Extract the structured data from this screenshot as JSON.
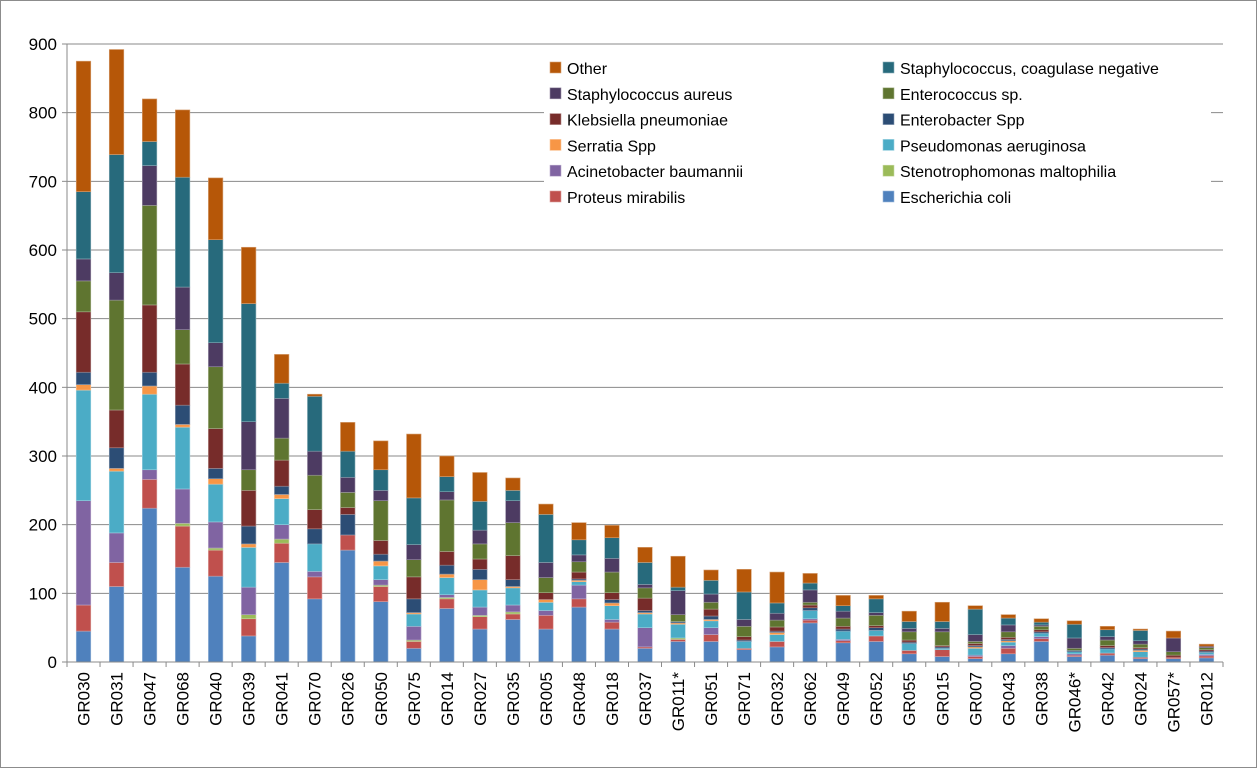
{
  "chart_data": {
    "type": "bar",
    "stacked": true,
    "title": "",
    "xlabel": "",
    "ylabel": "",
    "ylim": [
      0,
      900
    ],
    "yticks": [
      0,
      100,
      200,
      300,
      400,
      500,
      600,
      700,
      800,
      900
    ],
    "grid": true,
    "legend_position": "top-right",
    "categories": [
      "GR030",
      "GR031",
      "GR047",
      "GR068",
      "GR040",
      "GR039",
      "GR041",
      "GR070",
      "GR026",
      "GR050",
      "GR075",
      "GR014",
      "GR027",
      "GR035",
      "GR005",
      "GR048",
      "GR018",
      "GR037",
      "GR011*",
      "GR051",
      "GR071",
      "GR032",
      "GR062",
      "GR049",
      "GR052",
      "GR055",
      "GR015",
      "GR007",
      "GR043",
      "GR038",
      "GR046*",
      "GR042",
      "GR024",
      "GR057*",
      "GR012"
    ],
    "series": [
      {
        "name": "Escherichia coli",
        "color": "#4F81BD",
        "values": [
          45,
          110,
          224,
          138,
          125,
          38,
          145,
          92,
          163,
          88,
          20,
          78,
          48,
          62,
          48,
          80,
          48,
          20,
          30,
          30,
          18,
          22,
          57,
          28,
          30,
          12,
          8,
          5,
          12,
          30,
          8,
          10,
          5,
          5,
          6
        ]
      },
      {
        "name": "Proteus mirabilis",
        "color": "#C0504D",
        "values": [
          38,
          35,
          42,
          60,
          38,
          25,
          28,
          32,
          22,
          22,
          10,
          14,
          18,
          8,
          20,
          12,
          10,
          2,
          3,
          10,
          2,
          8,
          4,
          3,
          8,
          5,
          10,
          3,
          8,
          4,
          2,
          3,
          2,
          2,
          3
        ]
      },
      {
        "name": "Stenotrophomonas maltophilia",
        "color": "#9BBB59",
        "values": [
          0,
          0,
          0,
          4,
          3,
          6,
          6,
          0,
          0,
          2,
          2,
          2,
          2,
          3,
          0,
          0,
          0,
          0,
          2,
          0,
          0,
          0,
          0,
          0,
          0,
          0,
          0,
          0,
          0,
          0,
          0,
          0,
          0,
          0,
          0
        ]
      },
      {
        "name": "Acinetobacter baumannii",
        "color": "#8064A2",
        "values": [
          152,
          43,
          14,
          50,
          38,
          40,
          21,
          8,
          0,
          8,
          20,
          4,
          12,
          10,
          7,
          20,
          4,
          28,
          0,
          10,
          0,
          0,
          2,
          2,
          0,
          0,
          0,
          2,
          4,
          3,
          2,
          0,
          0,
          0,
          2
        ]
      },
      {
        "name": "Pseudomonas aeruginosa",
        "color": "#4BACC6",
        "values": [
          161,
          90,
          110,
          90,
          55,
          58,
          38,
          40,
          0,
          20,
          18,
          25,
          25,
          25,
          12,
          5,
          20,
          20,
          20,
          10,
          10,
          10,
          12,
          12,
          8,
          10,
          2,
          10,
          5,
          5,
          3,
          6,
          8,
          0,
          3
        ]
      },
      {
        "name": "Serratia Spp",
        "color": "#F79646",
        "values": [
          8,
          4,
          12,
          4,
          8,
          5,
          6,
          0,
          0,
          7,
          2,
          5,
          15,
          2,
          4,
          2,
          4,
          2,
          2,
          2,
          0,
          3,
          0,
          0,
          0,
          0,
          0,
          2,
          2,
          0,
          0,
          0,
          2,
          0,
          0
        ]
      },
      {
        "name": "Enterobacter Spp",
        "color": "#2C4D75",
        "values": [
          18,
          30,
          20,
          28,
          15,
          26,
          12,
          22,
          30,
          10,
          20,
          13,
          15,
          10,
          0,
          2,
          5,
          3,
          2,
          5,
          2,
          2,
          4,
          3,
          4,
          2,
          2,
          2,
          2,
          2,
          2,
          2,
          2,
          0,
          2
        ]
      },
      {
        "name": "Klebsiella pneumoniae",
        "color": "#772C2A",
        "values": [
          88,
          55,
          98,
          60,
          58,
          52,
          38,
          28,
          10,
          20,
          32,
          20,
          15,
          35,
          10,
          10,
          10,
          18,
          0,
          10,
          5,
          6,
          4,
          4,
          3,
          3,
          2,
          3,
          3,
          3,
          0,
          3,
          2,
          3,
          2
        ]
      },
      {
        "name": "Enterococcus sp.",
        "color": "#5F7530",
        "values": [
          45,
          160,
          145,
          50,
          90,
          30,
          32,
          50,
          22,
          58,
          25,
          75,
          22,
          48,
          22,
          15,
          30,
          15,
          10,
          10,
          15,
          10,
          4,
          12,
          15,
          12,
          20,
          3,
          8,
          5,
          3,
          8,
          5,
          5,
          3
        ]
      },
      {
        "name": "Staphylococcus aureus",
        "color": "#4D3B62",
        "values": [
          32,
          40,
          58,
          62,
          35,
          70,
          58,
          35,
          22,
          15,
          22,
          12,
          20,
          32,
          22,
          10,
          20,
          5,
          35,
          12,
          10,
          10,
          18,
          10,
          4,
          5,
          5,
          10,
          10,
          2,
          15,
          5,
          5,
          20,
          2
        ]
      },
      {
        "name": "Staphylococcus, coagulase negative",
        "color": "#276A7C",
        "values": [
          98,
          172,
          35,
          160,
          150,
          172,
          22,
          80,
          38,
          30,
          68,
          22,
          42,
          15,
          70,
          22,
          30,
          32,
          5,
          20,
          40,
          15,
          10,
          8,
          20,
          10,
          10,
          37,
          10,
          4,
          20,
          10,
          15,
          0,
          0
        ]
      },
      {
        "name": "Other",
        "color": "#B65708",
        "values": [
          190,
          153,
          62,
          98,
          90,
          82,
          42,
          3,
          42,
          42,
          93,
          30,
          42,
          18,
          15,
          25,
          18,
          22,
          45,
          15,
          33,
          45,
          14,
          15,
          5,
          15,
          28,
          5,
          5,
          5,
          5,
          5,
          2,
          10,
          3
        ]
      }
    ]
  }
}
